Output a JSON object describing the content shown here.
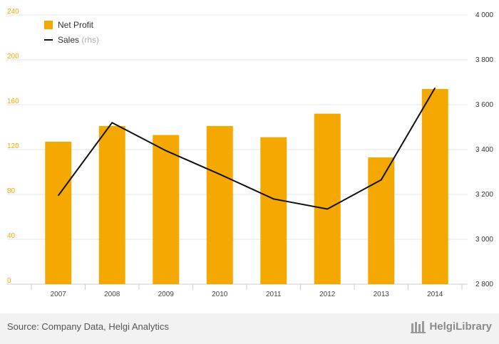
{
  "chart_data": {
    "type": "bar",
    "categories": [
      "2007",
      "2008",
      "2009",
      "2010",
      "2011",
      "2012",
      "2013",
      "2014"
    ],
    "series": [
      {
        "name": "Net Profit",
        "kind": "bar",
        "axis": "left",
        "values": [
          127,
          141,
          133,
          141,
          131,
          152,
          113,
          174
        ]
      },
      {
        "name": "Sales",
        "kind": "line",
        "axis": "right",
        "values": [
          3195,
          3520,
          3395,
          3290,
          3180,
          3135,
          3265,
          3675
        ]
      }
    ],
    "legend": [
      {
        "label": "Net Profit",
        "sub": ""
      },
      {
        "label": "Sales",
        "sub": "(rhs)"
      }
    ],
    "left_axis": {
      "ylim": [
        0,
        240
      ],
      "ticks": [
        "0",
        "40",
        "80",
        "120",
        "160",
        "200",
        "240"
      ]
    },
    "right_axis": {
      "ylim": [
        2800,
        4000
      ],
      "ticks": [
        "2 800",
        "3 000",
        "3 200",
        "3 400",
        "3 600",
        "3 800",
        "4 000"
      ]
    },
    "legend_position": "top-left",
    "grid": true
  },
  "colors": {
    "bar": "#f5a800",
    "line": "#111111",
    "grid": "#e6e6e6",
    "axis_left": "#f5a800"
  },
  "footer": {
    "source": "Source: Company Data, Helgi Analytics",
    "brand": "HelgiLibrary"
  }
}
